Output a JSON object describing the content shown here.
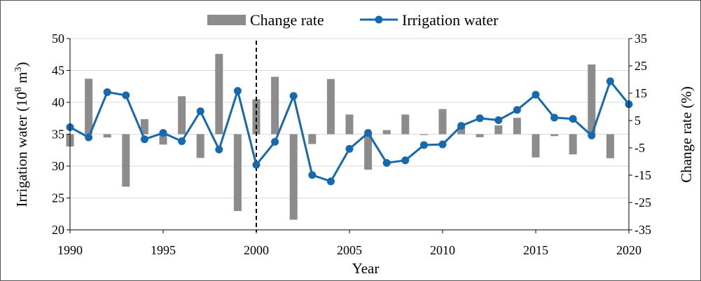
{
  "chart_data": {
    "type": "bar+line",
    "legend": {
      "placement": "top-center",
      "entries": [
        {
          "label": "Change rate",
          "kind": "bar"
        },
        {
          "label": "Irrigation water",
          "kind": "line-marker"
        }
      ]
    },
    "xlabel": "Year",
    "ylabel_left": "Irrigation water (10",
    "ylabel_left_sup": "8",
    "ylabel_left_tail": " m",
    "ylabel_left_sup2": "3",
    "ylabel_left_close": ")",
    "ylabel_right": "Change rate (%)",
    "xlim": [
      1990,
      2020
    ],
    "x_ticks": [
      "1990",
      "1995",
      "2000",
      "2005",
      "2010",
      "2015",
      "2020"
    ],
    "ylim_left": [
      20,
      50
    ],
    "y_ticks_left": [
      "20",
      "25",
      "30",
      "35",
      "40",
      "45",
      "50"
    ],
    "ylim_right": [
      -35,
      35
    ],
    "y_ticks_right": [
      "-35",
      "-25",
      "-15",
      "-5",
      "5",
      "15",
      "25",
      "35"
    ],
    "grid": "horizontal",
    "reference_line": {
      "x": 2000,
      "style": "dashed"
    },
    "colors": {
      "bar": "#8c8c8c",
      "line": "#1569b0",
      "grid": "#d9d9d9",
      "axis": "#000000"
    },
    "years": [
      1990,
      1991,
      1992,
      1993,
      1994,
      1995,
      1996,
      1997,
      1998,
      1999,
      2000,
      2001,
      2002,
      2003,
      2004,
      2005,
      2006,
      2007,
      2008,
      2009,
      2010,
      2011,
      2012,
      2013,
      2014,
      2015,
      2016,
      2017,
      2018,
      2019,
      2020
    ],
    "series": [
      {
        "name": "Change rate",
        "axis": "right",
        "type": "bar",
        "values": [
          -4.5,
          20.3,
          -1.2,
          -19.2,
          5.5,
          -3.8,
          13.9,
          -8.7,
          29.4,
          -28.1,
          12.8,
          21.0,
          -31.3,
          -3.6,
          20.2,
          7.2,
          -13.0,
          1.5,
          7.2,
          -0.3,
          9.2,
          2.9,
          -1.1,
          3.2,
          6.0,
          -8.5,
          -0.7,
          -7.4,
          25.5,
          -8.8,
          null
        ]
      },
      {
        "name": "Irrigation water",
        "axis": "left",
        "type": "line",
        "values": [
          36.1,
          34.5,
          41.6,
          41.1,
          34.2,
          35.2,
          33.9,
          38.6,
          32.6,
          41.8,
          30.2,
          33.8,
          41.0,
          28.6,
          27.6,
          32.7,
          35.2,
          30.5,
          30.9,
          33.3,
          33.4,
          36.3,
          37.5,
          37.2,
          38.8,
          41.2,
          37.6,
          37.4,
          34.8,
          43.3,
          39.7
        ]
      }
    ]
  }
}
